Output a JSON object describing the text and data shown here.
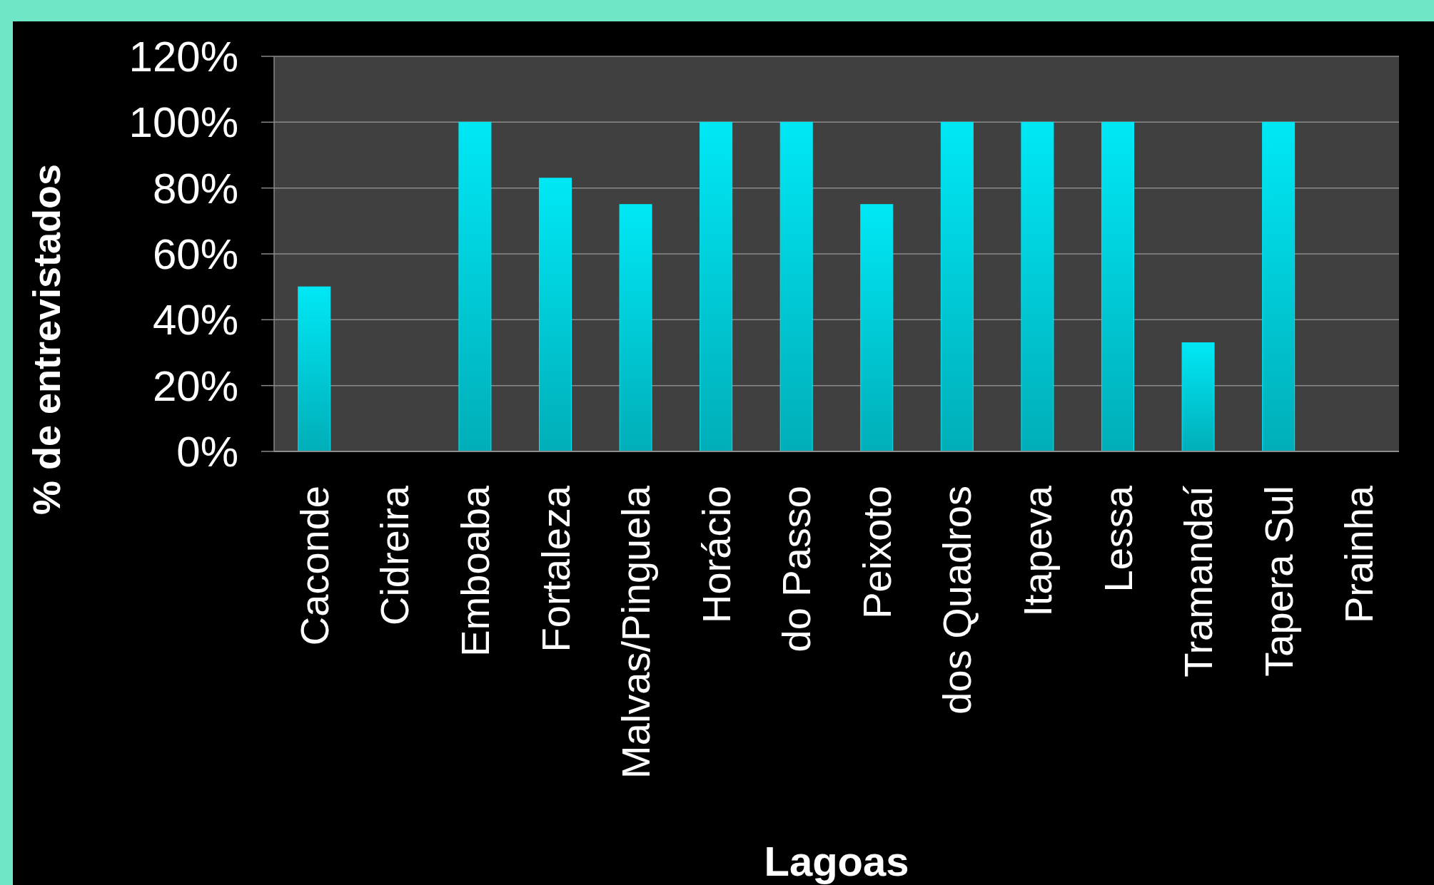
{
  "chart_data": {
    "type": "bar",
    "xlabel": "Lagoas",
    "ylabel": "% de entrevistados",
    "categories": [
      "Caconde",
      "Cidreira",
      "Emboaba",
      "Fortaleza",
      "Malvas/Pinguela",
      "Horácio",
      "do Passo",
      "Peixoto",
      "dos Quadros",
      "Itapeva",
      "Lessa",
      "Tramandaí",
      "Tapera Sul",
      "Prainha"
    ],
    "values": [
      50,
      0,
      100,
      83,
      75,
      100,
      100,
      75,
      100,
      100,
      100,
      33,
      100,
      0
    ],
    "color": "#00e8f5",
    "ylim": [
      0,
      120
    ],
    "yticks": [
      {
        "value": 0,
        "label": "0%"
      },
      {
        "value": 20,
        "label": "20%"
      },
      {
        "value": 40,
        "label": "40%"
      },
      {
        "value": 60,
        "label": "60%"
      },
      {
        "value": 80,
        "label": "80%"
      },
      {
        "value": 100,
        "label": "100%"
      },
      {
        "value": 120,
        "label": "120%"
      }
    ],
    "grid": "y"
  }
}
